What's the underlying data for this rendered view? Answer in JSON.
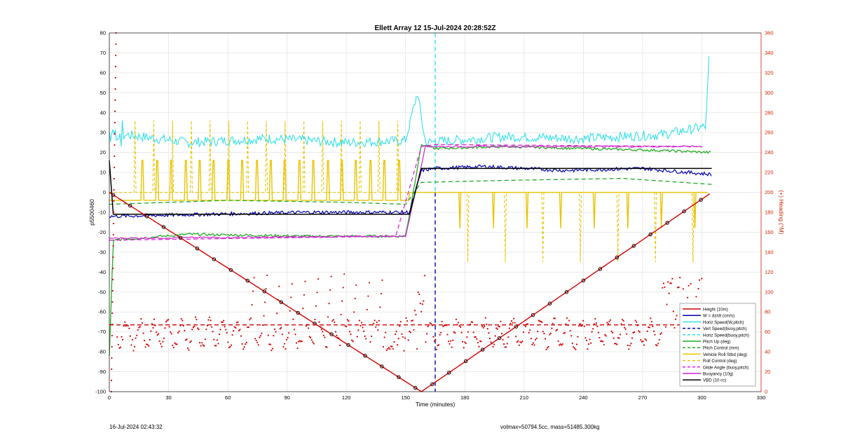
{
  "chart_data": {
    "type": "line",
    "title": "Ellett Array 12 15-Jul-2024 20:28:52Z",
    "xlabel": "Time (minutes)",
    "ylabel_left": "p5500460",
    "ylabel_right": "(+) Heading (°M)",
    "xlim": [
      0,
      330
    ],
    "ylim_left": [
      -100,
      80
    ],
    "ylim_right": [
      0,
      360
    ],
    "xticks": [
      0,
      30,
      60,
      90,
      120,
      150,
      180,
      210,
      240,
      270,
      300,
      330
    ],
    "yticks_left": [
      -100,
      -90,
      -80,
      -70,
      -60,
      -50,
      -40,
      -30,
      -20,
      -10,
      0,
      10,
      20,
      30,
      40,
      50,
      60,
      70,
      80
    ],
    "yticks_right": [
      0,
      20,
      40,
      60,
      80,
      100,
      120,
      140,
      160,
      180,
      200,
      220,
      240,
      260,
      280,
      300,
      320,
      340,
      360
    ],
    "grid": true,
    "legend_position": "bottom-right",
    "colors": {
      "height": "#d40000",
      "w": "#0000b0",
      "horiz": "#33e0e8",
      "pitch": "#22aa22",
      "roll": "#e8c400",
      "glide": "#e020e0",
      "buoyancy": "#cc22cc",
      "vbd": "#000000",
      "heading_axis": "#cc2200"
    },
    "vlines": [
      {
        "x": 165,
        "color": "#33e0e8",
        "axis": "top"
      },
      {
        "x": 165,
        "color": "#0000b0",
        "axis": "bottom"
      }
    ],
    "heading_mean": 67,
    "series": [
      {
        "name": "Height (10m)",
        "key": "height",
        "x": [
          0,
          158,
          305
        ],
        "y": [
          0,
          -100,
          0
        ]
      },
      {
        "name": "W = dz/dt (cm/s)",
        "key": "w",
        "x": [
          0,
          2,
          50,
          100,
          152,
          158,
          165,
          190,
          230,
          270,
          305
        ],
        "y": [
          -12,
          -12,
          -11,
          -10,
          -10,
          11,
          12,
          13,
          11,
          12,
          9
        ]
      },
      {
        "name": "Horiz Speed(W,pitch)",
        "key": "horiz",
        "x": [
          0,
          40,
          80,
          120,
          150,
          156,
          160,
          200,
          240,
          280,
          302,
          304
        ],
        "y": [
          30,
          25,
          27,
          25,
          26,
          50,
          25,
          28,
          27,
          29,
          33,
          75
        ]
      },
      {
        "name": "Vert Speed(buoy,pitch)",
        "key": "vert",
        "x": [
          0,
          305
        ],
        "y": [
          0,
          0
        ]
      },
      {
        "name": "Horiz Speed(buoy,pitch)",
        "key": "horizb",
        "x": [
          0,
          305
        ],
        "y": [
          25,
          25
        ]
      },
      {
        "name": "Pitch Up (deg)",
        "key": "pitch",
        "x": [
          0,
          2,
          40,
          100,
          150,
          158,
          165,
          200,
          240,
          280,
          305
        ],
        "y": [
          -82,
          -24,
          -21,
          -22,
          -22,
          24,
          22,
          23,
          22,
          21,
          20
        ]
      },
      {
        "name": "Pitch Control (mm)",
        "key": "pitchctl",
        "x": [
          0,
          60,
          120,
          150,
          158,
          200,
          260,
          305
        ],
        "y": [
          -6,
          -4,
          -5,
          -6,
          5,
          6,
          7,
          4
        ]
      },
      {
        "name": "Vehicle Roll Stbd (deg)",
        "key": "roll",
        "x": [
          0,
          150,
          160,
          300
        ],
        "y": [
          -4,
          -4,
          0,
          0
        ]
      },
      {
        "name": "Roll Control (deg)",
        "key": "rollctl",
        "x": [
          0,
          150,
          160,
          300
        ],
        "y": [
          0,
          0,
          0,
          0
        ]
      },
      {
        "name": "Glide Angle (buoy,pitch)",
        "key": "glide",
        "x": [
          0,
          145,
          158,
          165,
          300
        ],
        "y": [
          -24,
          -22,
          23,
          24,
          23
        ]
      },
      {
        "name": "Buoyancy (10g)",
        "key": "buoy",
        "x": [
          0,
          150,
          160,
          300
        ],
        "y": [
          -23,
          -22,
          23,
          23
        ]
      },
      {
        "name": "VBD (10 cc)",
        "key": "vbd",
        "x": [
          0,
          2,
          152,
          158,
          305
        ],
        "y": [
          16,
          -11,
          -11,
          12,
          12
        ]
      }
    ]
  },
  "footer": {
    "left": "16-Jul-2024 02:43:32",
    "right": "volmax=50794.5cc, mass=51485.300kg"
  }
}
